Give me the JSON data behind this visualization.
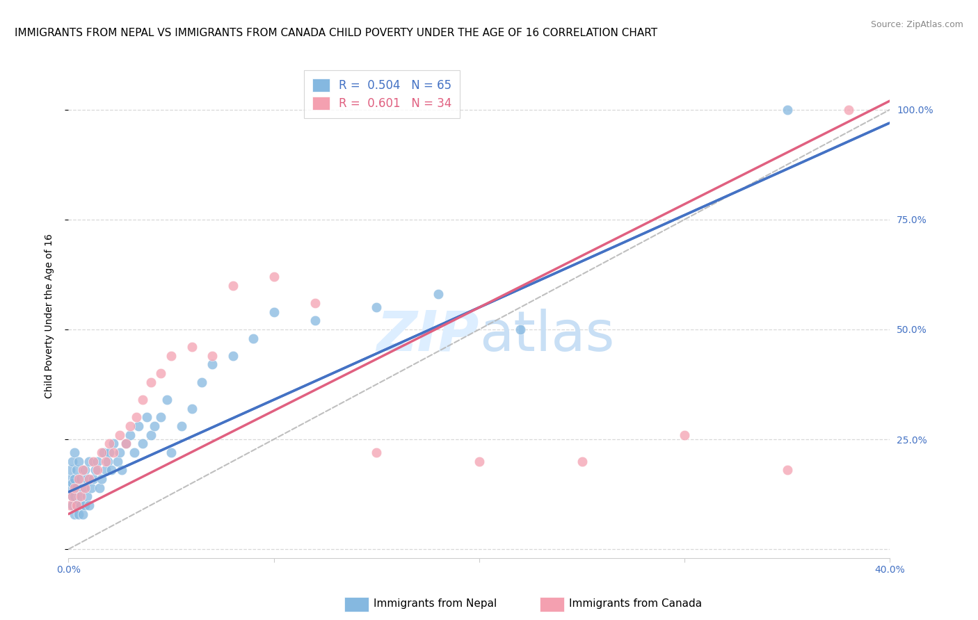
{
  "title": "IMMIGRANTS FROM NEPAL VS IMMIGRANTS FROM CANADA CHILD POVERTY UNDER THE AGE OF 16 CORRELATION CHART",
  "source": "Source: ZipAtlas.com",
  "ylabel": "Child Poverty Under the Age of 16",
  "xlim": [
    0.0,
    0.4
  ],
  "ylim": [
    -0.02,
    1.08
  ],
  "xticks": [
    0.0,
    0.1,
    0.2,
    0.3,
    0.4
  ],
  "xticklabels": [
    "0.0%",
    "",
    "",
    "",
    "40.0%"
  ],
  "ytick_positions": [
    0.0,
    0.25,
    0.5,
    0.75,
    1.0
  ],
  "yticklabels_right": [
    "",
    "25.0%",
    "50.0%",
    "75.0%",
    "100.0%"
  ],
  "nepal_R": 0.504,
  "nepal_N": 65,
  "canada_R": 0.601,
  "canada_N": 34,
  "nepal_color": "#85b8e0",
  "canada_color": "#f4a0b0",
  "nepal_line_color": "#4472c4",
  "canada_line_color": "#e06080",
  "diagonal_color": "#b8b8b8",
  "background_color": "#ffffff",
  "grid_color": "#d8d8d8",
  "watermark_color": "#ddeeff",
  "title_fontsize": 11,
  "axis_label_fontsize": 10,
  "tick_fontsize": 10,
  "legend_fontsize": 12,
  "nepal_scatter_x": [
    0.001,
    0.001,
    0.001,
    0.002,
    0.002,
    0.002,
    0.002,
    0.003,
    0.003,
    0.003,
    0.003,
    0.004,
    0.004,
    0.004,
    0.005,
    0.005,
    0.005,
    0.006,
    0.006,
    0.007,
    0.007,
    0.008,
    0.008,
    0.009,
    0.009,
    0.01,
    0.01,
    0.011,
    0.012,
    0.013,
    0.014,
    0.015,
    0.016,
    0.017,
    0.018,
    0.019,
    0.02,
    0.021,
    0.022,
    0.024,
    0.025,
    0.026,
    0.028,
    0.03,
    0.032,
    0.034,
    0.036,
    0.038,
    0.04,
    0.042,
    0.045,
    0.048,
    0.05,
    0.055,
    0.06,
    0.065,
    0.07,
    0.08,
    0.09,
    0.1,
    0.12,
    0.15,
    0.18,
    0.22,
    0.35
  ],
  "nepal_scatter_y": [
    0.14,
    0.16,
    0.18,
    0.1,
    0.12,
    0.15,
    0.2,
    0.08,
    0.12,
    0.16,
    0.22,
    0.1,
    0.14,
    0.18,
    0.08,
    0.12,
    0.2,
    0.1,
    0.16,
    0.08,
    0.14,
    0.1,
    0.18,
    0.12,
    0.16,
    0.1,
    0.2,
    0.14,
    0.16,
    0.18,
    0.2,
    0.14,
    0.16,
    0.22,
    0.18,
    0.2,
    0.22,
    0.18,
    0.24,
    0.2,
    0.22,
    0.18,
    0.24,
    0.26,
    0.22,
    0.28,
    0.24,
    0.3,
    0.26,
    0.28,
    0.3,
    0.34,
    0.22,
    0.28,
    0.32,
    0.38,
    0.42,
    0.44,
    0.48,
    0.54,
    0.52,
    0.55,
    0.58,
    0.5,
    1.0
  ],
  "canada_scatter_x": [
    0.001,
    0.002,
    0.003,
    0.004,
    0.005,
    0.006,
    0.007,
    0.008,
    0.01,
    0.012,
    0.014,
    0.016,
    0.018,
    0.02,
    0.022,
    0.025,
    0.028,
    0.03,
    0.033,
    0.036,
    0.04,
    0.045,
    0.05,
    0.06,
    0.07,
    0.08,
    0.1,
    0.12,
    0.15,
    0.2,
    0.25,
    0.3,
    0.35,
    0.38
  ],
  "canada_scatter_y": [
    0.1,
    0.12,
    0.14,
    0.1,
    0.16,
    0.12,
    0.18,
    0.14,
    0.16,
    0.2,
    0.18,
    0.22,
    0.2,
    0.24,
    0.22,
    0.26,
    0.24,
    0.28,
    0.3,
    0.34,
    0.38,
    0.4,
    0.44,
    0.46,
    0.44,
    0.6,
    0.62,
    0.56,
    0.22,
    0.2,
    0.2,
    0.26,
    0.18,
    1.0
  ],
  "nepal_line_x0": 0.0,
  "nepal_line_y0": 0.13,
  "nepal_line_x1": 0.4,
  "nepal_line_y1": 0.97,
  "canada_line_x0": 0.0,
  "canada_line_y0": 0.08,
  "canada_line_x1": 0.4,
  "canada_line_y1": 1.02
}
